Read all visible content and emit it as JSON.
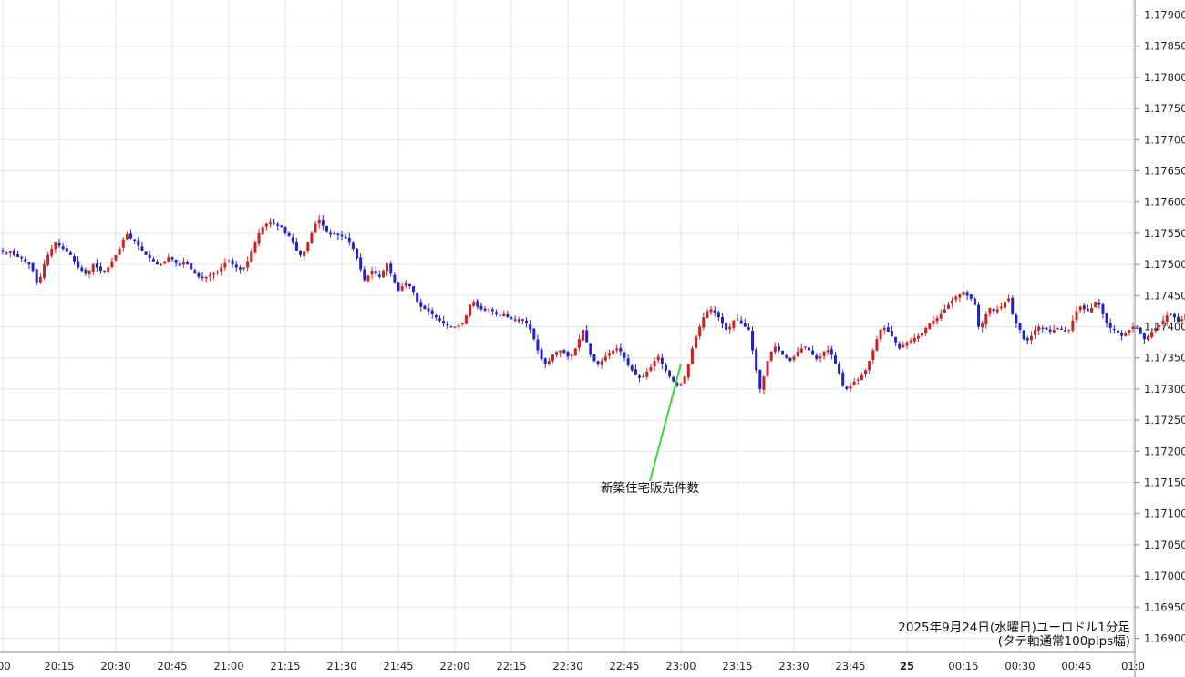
{
  "chart_data": {
    "type": "candlestick",
    "caption_line1": "2025年9月24日(水曜日)ユーロドル1分足",
    "caption_line2": "(タテ軸通常100pips幅)",
    "annotation": {
      "text": "新築住宅販売件数",
      "time": "23:00",
      "price": 1.1734,
      "label_price": 1.17155
    },
    "ylim": [
      1.1687,
      1.1792
    ],
    "y_ticks": [
      "1.17900",
      "1.17850",
      "1.17800",
      "1.17750",
      "1.17700",
      "1.17650",
      "1.17600",
      "1.17550",
      "1.17500",
      "1.17450",
      "1.17400",
      "1.17350",
      "1.17300",
      "1.17250",
      "1.17200",
      "1.17150",
      "1.17100",
      "1.17050",
      "1.17000",
      "1.16950",
      "1.16900"
    ],
    "x_ticks": [
      {
        "label": "00",
        "bold": false
      },
      {
        "label": "20:15",
        "bold": false
      },
      {
        "label": "20:30",
        "bold": false
      },
      {
        "label": "20:45",
        "bold": false
      },
      {
        "label": "21:00",
        "bold": false
      },
      {
        "label": "21:15",
        "bold": false
      },
      {
        "label": "21:30",
        "bold": false
      },
      {
        "label": "21:45",
        "bold": false
      },
      {
        "label": "22:00",
        "bold": false
      },
      {
        "label": "22:15",
        "bold": false
      },
      {
        "label": "22:30",
        "bold": false
      },
      {
        "label": "22:45",
        "bold": false
      },
      {
        "label": "23:00",
        "bold": false
      },
      {
        "label": "23:15",
        "bold": false
      },
      {
        "label": "23:30",
        "bold": false
      },
      {
        "label": "23:45",
        "bold": false
      },
      {
        "label": "25",
        "bold": true
      },
      {
        "label": "00:15",
        "bold": false
      },
      {
        "label": "00:30",
        "bold": false
      },
      {
        "label": "00:45",
        "bold": false
      },
      {
        "label": "01:0",
        "bold": false
      }
    ],
    "start_time": "20:00",
    "closes": [
      1.1752,
      1.17518,
      1.17522,
      1.17515,
      1.17512,
      1.1751,
      1.17505,
      1.175,
      1.1749,
      1.1747,
      1.1748,
      1.175,
      1.17515,
      1.17525,
      1.17535,
      1.1753,
      1.17525,
      1.1752,
      1.17515,
      1.17505,
      1.17495,
      1.1749,
      1.17485,
      1.1749,
      1.175,
      1.17495,
      1.1749,
      1.17488,
      1.17495,
      1.17505,
      1.17515,
      1.17525,
      1.1754,
      1.17548,
      1.17542,
      1.17538,
      1.1753,
      1.17522,
      1.17515,
      1.1751,
      1.17505,
      1.175,
      1.175,
      1.17505,
      1.17512,
      1.17508,
      1.17502,
      1.17498,
      1.17505,
      1.175,
      1.17492,
      1.17485,
      1.1748,
      1.17478,
      1.1748,
      1.17483,
      1.17485,
      1.17488,
      1.17495,
      1.17502,
      1.17505,
      1.175,
      1.17495,
      1.17492,
      1.17495,
      1.17505,
      1.1752,
      1.17535,
      1.1755,
      1.1756,
      1.17565,
      1.17567,
      1.17565,
      1.17562,
      1.1756,
      1.1755,
      1.17545,
      1.17535,
      1.17522,
      1.17515,
      1.1752,
      1.17535,
      1.1755,
      1.17565,
      1.17572,
      1.17562,
      1.17552,
      1.17548,
      1.1755,
      1.17547,
      1.17545,
      1.17542,
      1.17535,
      1.17525,
      1.1751,
      1.17492,
      1.17475,
      1.17482,
      1.1749,
      1.17485,
      1.1748,
      1.1749,
      1.175,
      1.17485,
      1.1747,
      1.17458,
      1.17465,
      1.1747,
      1.17465,
      1.17455,
      1.1744,
      1.17432,
      1.17428,
      1.17425,
      1.1742,
      1.17415,
      1.1741,
      1.17405,
      1.17402,
      1.174,
      1.174,
      1.17402,
      1.17406,
      1.17418,
      1.17435,
      1.1744,
      1.17432,
      1.17428,
      1.17426,
      1.17428,
      1.17425,
      1.1742,
      1.17418,
      1.1742,
      1.17415,
      1.17412,
      1.1741,
      1.17412,
      1.1741,
      1.17405,
      1.17395,
      1.1738,
      1.17362,
      1.17348,
      1.1734,
      1.17345,
      1.17355,
      1.1736,
      1.17362,
      1.17358,
      1.17352,
      1.17355,
      1.17365,
      1.1738,
      1.17395,
      1.17375,
      1.17355,
      1.17345,
      1.1734,
      1.17345,
      1.17352,
      1.17358,
      1.17362,
      1.17365,
      1.1736,
      1.1735,
      1.17338,
      1.1733,
      1.17322,
      1.17318,
      1.1732,
      1.17328,
      1.17335,
      1.17345,
      1.17352,
      1.1734,
      1.1733,
      1.1732,
      1.17312,
      1.17305,
      1.17308,
      1.1732,
      1.1734,
      1.17365,
      1.17385,
      1.174,
      1.17415,
      1.17425,
      1.17428,
      1.17422,
      1.17415,
      1.17405,
      1.17395,
      1.174,
      1.1741,
      1.17412,
      1.17405,
      1.174,
      1.17395,
      1.17362,
      1.1733,
      1.173,
      1.1732,
      1.17345,
      1.1736,
      1.17368,
      1.17362,
      1.17355,
      1.1735,
      1.17345,
      1.17352,
      1.1736,
      1.17365,
      1.17368,
      1.17362,
      1.17355,
      1.17348,
      1.17352,
      1.1736,
      1.17362,
      1.17355,
      1.1734,
      1.17325,
      1.17305,
      1.173,
      1.17305,
      1.17312,
      1.17315,
      1.17322,
      1.1733,
      1.17345,
      1.17362,
      1.1738,
      1.17395,
      1.17398,
      1.17392,
      1.17385,
      1.17375,
      1.17365,
      1.1737,
      1.17375,
      1.17378,
      1.17382,
      1.17385,
      1.1739,
      1.17398,
      1.17405,
      1.1741,
      1.17414,
      1.1742,
      1.17428,
      1.17435,
      1.17442,
      1.17448,
      1.17452,
      1.17455,
      1.1745,
      1.17445,
      1.17435,
      1.174,
      1.17405,
      1.1742,
      1.1743,
      1.17425,
      1.17428,
      1.17432,
      1.1744,
      1.17445,
      1.1742,
      1.17405,
      1.17395,
      1.1738,
      1.17378,
      1.17385,
      1.17395,
      1.174,
      1.17398,
      1.17395,
      1.17392,
      1.17395,
      1.17398,
      1.17395,
      1.17392,
      1.17395,
      1.1741,
      1.17425,
      1.17432,
      1.17428,
      1.17425,
      1.1743,
      1.1744,
      1.17435,
      1.1742,
      1.17405,
      1.17398,
      1.17395,
      1.1739,
      1.17385,
      1.1739,
      1.17395,
      1.174,
      1.17398,
      1.17388,
      1.1738,
      1.17385,
      1.17392,
      1.17398,
      1.17402,
      1.1741,
      1.17418,
      1.1742,
      1.17415,
      1.17408,
      1.17412,
      1.1742,
      1.17428,
      1.17435,
      1.17438,
      1.1743,
      1.17425,
      1.17425,
      1.17422,
      1.17425,
      1.17428,
      1.17435,
      1.1744,
      1.17448,
      1.1745,
      1.17448,
      1.1744,
      1.1743,
      1.17418,
      1.1741,
      1.17412
    ],
    "colors": {
      "up": "#cc2222",
      "down": "#2222cc",
      "grid": "#dde6ef",
      "axis": "#888888",
      "annotation_line": "#33dd33"
    }
  }
}
